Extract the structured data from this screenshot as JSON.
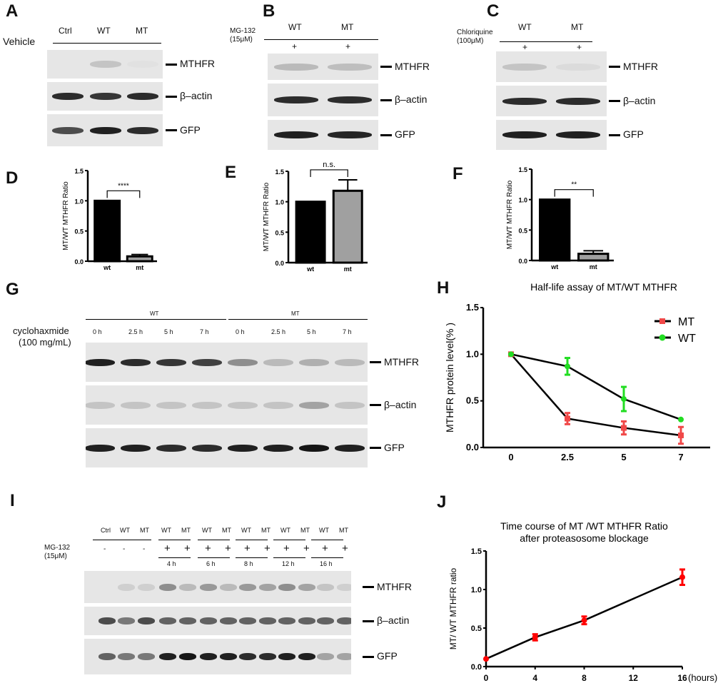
{
  "panels": {
    "A": "A",
    "B": "B",
    "C": "C",
    "D": "D",
    "E": "E",
    "F": "F",
    "G": "G",
    "H": "H",
    "I": "I",
    "J": "J"
  },
  "blot_a": {
    "lanes": [
      "Ctrl",
      "WT",
      "MT"
    ],
    "treatment": "Vehicle",
    "bands": [
      {
        "label": "MTHFR",
        "intensity": [
          0,
          0.15,
          0.02
        ]
      },
      {
        "label": "β–actin",
        "intensity": [
          0.85,
          0.8,
          0.85
        ]
      },
      {
        "label": "GFP",
        "intensity": [
          0.7,
          0.9,
          0.85
        ]
      }
    ]
  },
  "blot_b": {
    "lanes": [
      "WT",
      "MT"
    ],
    "treatment": "MG-132",
    "dose": "(15μM)",
    "plus": [
      "+",
      "+"
    ],
    "bands": [
      {
        "label": "MTHFR",
        "intensity": [
          0.2,
          0.18
        ]
      },
      {
        "label": "β–actin",
        "intensity": [
          0.85,
          0.85
        ]
      },
      {
        "label": "GFP",
        "intensity": [
          0.9,
          0.88
        ]
      }
    ]
  },
  "blot_c": {
    "lanes": [
      "WT",
      "MT"
    ],
    "treatment": "Chloriquine",
    "dose": "(100μM)",
    "plus": [
      "+",
      "+"
    ],
    "bands": [
      {
        "label": "MTHFR",
        "intensity": [
          0.15,
          0.05
        ]
      },
      {
        "label": "β–actin",
        "intensity": [
          0.85,
          0.85
        ]
      },
      {
        "label": "GFP",
        "intensity": [
          0.9,
          0.9
        ]
      }
    ]
  },
  "blot_g": {
    "groups": [
      "WT",
      "MT"
    ],
    "times": [
      "0 h",
      "2.5 h",
      "5 h",
      "7 h",
      "0 h",
      "2.5 h",
      "5 h",
      "7 h"
    ],
    "treatment": "cyclohaxmide",
    "dose": "(100 mg/mL)",
    "bands": [
      {
        "label": "MTHFR",
        "intensity": [
          0.9,
          0.85,
          0.8,
          0.75,
          0.4,
          0.2,
          0.25,
          0.2
        ]
      },
      {
        "label": "β–actin",
        "intensity": [
          0.15,
          0.15,
          0.15,
          0.15,
          0.15,
          0.15,
          0.3,
          0.15
        ]
      },
      {
        "label": "GFP",
        "intensity": [
          0.9,
          0.9,
          0.85,
          0.85,
          0.9,
          0.9,
          0.95,
          0.9
        ]
      }
    ]
  },
  "blot_i": {
    "lanes": [
      "Ctrl",
      "WT",
      "MT",
      "WT",
      "MT",
      "WT",
      "MT",
      "WT",
      "MT",
      "WT",
      "MT",
      "WT",
      "MT"
    ],
    "treatment": "MG-132",
    "dose": "(15μM)",
    "signs": [
      "-",
      "-",
      "-",
      "+",
      "+",
      "+",
      "+",
      "+",
      "+",
      "+",
      "+",
      "+",
      "+"
    ],
    "times": [
      "4 h",
      "6 h",
      "8 h",
      "12   h",
      "16 h"
    ],
    "bands": [
      {
        "label": "MTHFR",
        "intensity": [
          0,
          0.1,
          0.1,
          0.4,
          0.2,
          0.35,
          0.2,
          0.35,
          0.3,
          0.4,
          0.3,
          0.15,
          0.1
        ]
      },
      {
        "label": "β–actin",
        "intensity": [
          0.7,
          0.5,
          0.7,
          0.6,
          0.6,
          0.6,
          0.6,
          0.6,
          0.6,
          0.6,
          0.6,
          0.6,
          0.6
        ]
      },
      {
        "label": "GFP",
        "intensity": [
          0.6,
          0.5,
          0.5,
          0.9,
          0.95,
          0.9,
          0.9,
          0.85,
          0.85,
          0.9,
          0.9,
          0.3,
          0.3
        ]
      }
    ]
  },
  "chart_data": [
    {
      "id": "D",
      "type": "bar",
      "categories": [
        "wt",
        "mt"
      ],
      "values": [
        1.0,
        0.08
      ],
      "errors": [
        0,
        0.03
      ],
      "colors": [
        "#000000",
        "#a0a0a0"
      ],
      "ylabel": "MT/WT MTHFR Ratio",
      "ylim": [
        0,
        1.5
      ],
      "yticks": [
        "0.0",
        "0.5",
        "1.0",
        "1.5"
      ],
      "significance": "****"
    },
    {
      "id": "E",
      "type": "bar",
      "categories": [
        "wt",
        "mt"
      ],
      "values": [
        1.0,
        1.18
      ],
      "errors": [
        0,
        0.18
      ],
      "colors": [
        "#000000",
        "#a0a0a0"
      ],
      "ylabel": "MT/WT MTHFR Ratio",
      "ylim": [
        0,
        1.5
      ],
      "yticks": [
        "0.0",
        "0.5",
        "1.0",
        "1.5"
      ],
      "significance": "n.s."
    },
    {
      "id": "F",
      "type": "bar",
      "categories": [
        "wt",
        "mt"
      ],
      "values": [
        1.0,
        0.11
      ],
      "errors": [
        0,
        0.05
      ],
      "colors": [
        "#000000",
        "#a0a0a0"
      ],
      "ylabel": "MT/WT MTHFR Ratio",
      "ylim": [
        0,
        1.5
      ],
      "yticks": [
        "0.0",
        "0.5",
        "1.0",
        "1.5"
      ],
      "significance": "**"
    },
    {
      "id": "H",
      "type": "line",
      "title": "Half-life assay of MT/WT MTHFR",
      "categories": [
        "0",
        "2.5",
        "5",
        "7"
      ],
      "ylabel": "MTHFR protein level(% )",
      "ylim": [
        0,
        1.5
      ],
      "yticks": [
        "0.0",
        "0.5",
        "1.0",
        "1.5"
      ],
      "legend": "top-right",
      "series": [
        {
          "name": "MT",
          "color": "#f04848",
          "marker": "square",
          "values": [
            1.0,
            0.31,
            0.21,
            0.13
          ],
          "errors": [
            0,
            0.06,
            0.07,
            0.09
          ]
        },
        {
          "name": "WT",
          "color": "#22dd22",
          "marker": "circle",
          "values": [
            1.0,
            0.87,
            0.52,
            0.3
          ],
          "errors": [
            0,
            0.09,
            0.13,
            0
          ]
        }
      ]
    },
    {
      "id": "J",
      "type": "line",
      "title": [
        "Time course of MT /WT MTHFR Ratio",
        "after proteasosome blockage"
      ],
      "x": [
        0,
        4,
        8,
        16
      ],
      "xlim": [
        0,
        16
      ],
      "xticks": [
        "0",
        "4",
        "8",
        "12",
        "16"
      ],
      "xlabel": "(hours)",
      "ylabel": "MT/ WT MTHFR ratio",
      "ylim": [
        0,
        1.5
      ],
      "yticks": [
        "0.0",
        "0.5",
        "1.0",
        "1.5"
      ],
      "series": [
        {
          "name": "MT/WT",
          "color": "#ff0000",
          "values": [
            0.1,
            0.38,
            0.6,
            1.16
          ],
          "errors": [
            0,
            0.04,
            0.05,
            0.1
          ]
        }
      ]
    }
  ]
}
